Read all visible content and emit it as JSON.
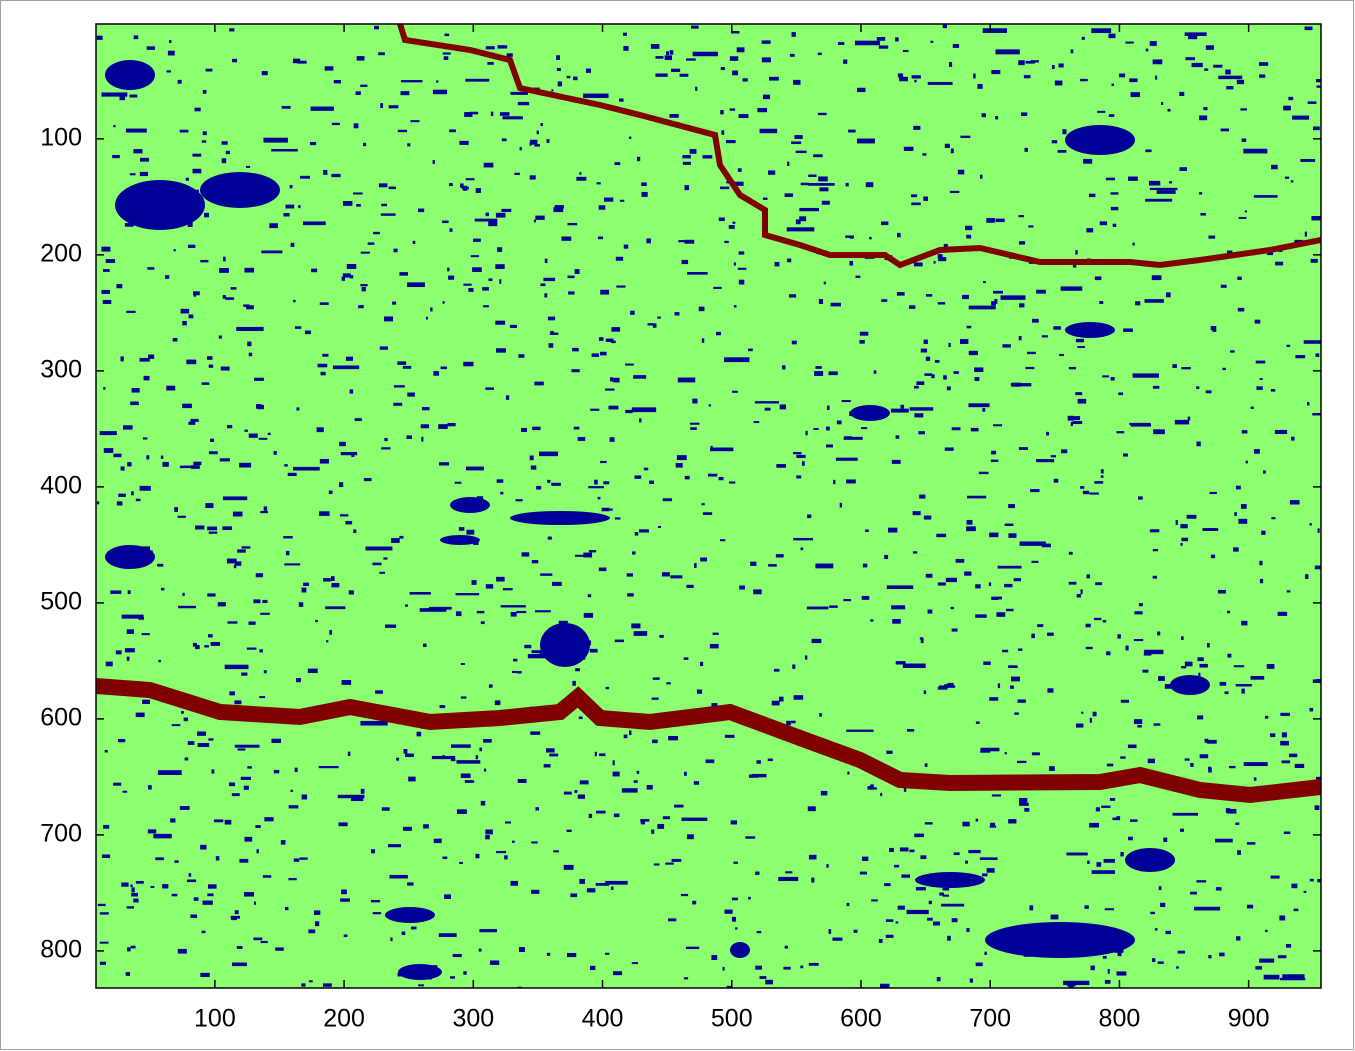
{
  "chart_data": {
    "type": "image",
    "xlim": [
      8,
      956
    ],
    "ylim": [
      1,
      832
    ],
    "ydir": "reverse",
    "xticks": [
      100,
      200,
      300,
      400,
      500,
      600,
      700,
      800,
      900
    ],
    "yticks": [
      100,
      200,
      300,
      400,
      500,
      600,
      700,
      800
    ]
  }
}
